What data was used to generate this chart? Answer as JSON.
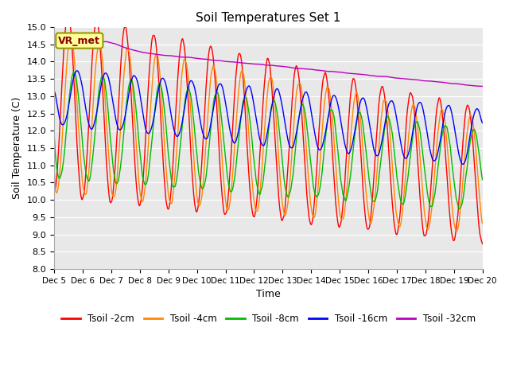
{
  "title": "Soil Temperatures Set 1",
  "xlabel": "Time",
  "ylabel": "Soil Temperature (C)",
  "ylim": [
    8.0,
    15.0
  ],
  "yticks": [
    8.0,
    8.5,
    9.0,
    9.5,
    10.0,
    10.5,
    11.0,
    11.5,
    12.0,
    12.5,
    13.0,
    13.5,
    14.0,
    14.5,
    15.0
  ],
  "xtick_labels": [
    "Dec 5",
    "Dec 6",
    "Dec 7",
    "Dec 8",
    "Dec 9",
    "Dec 10",
    "Dec 11",
    "Dec 12",
    "Dec 13",
    "Dec 14",
    "Dec 15",
    "Dec 16",
    "Dec 17",
    "Dec 18",
    "Dec 19",
    "Dec 20"
  ],
  "line_colors": [
    "#ff0000",
    "#ff8800",
    "#00bb00",
    "#0000ff",
    "#bb00bb"
  ],
  "line_labels": [
    "Tsoil -2cm",
    "Tsoil -4cm",
    "Tsoil -8cm",
    "Tsoil -16cm",
    "Tsoil -32cm"
  ],
  "annotation_text": "VR_met",
  "annotation_bg": "#ffff99",
  "annotation_border": "#999900",
  "plot_bg": "#e8e8e8",
  "n_points": 1440,
  "days": 15
}
